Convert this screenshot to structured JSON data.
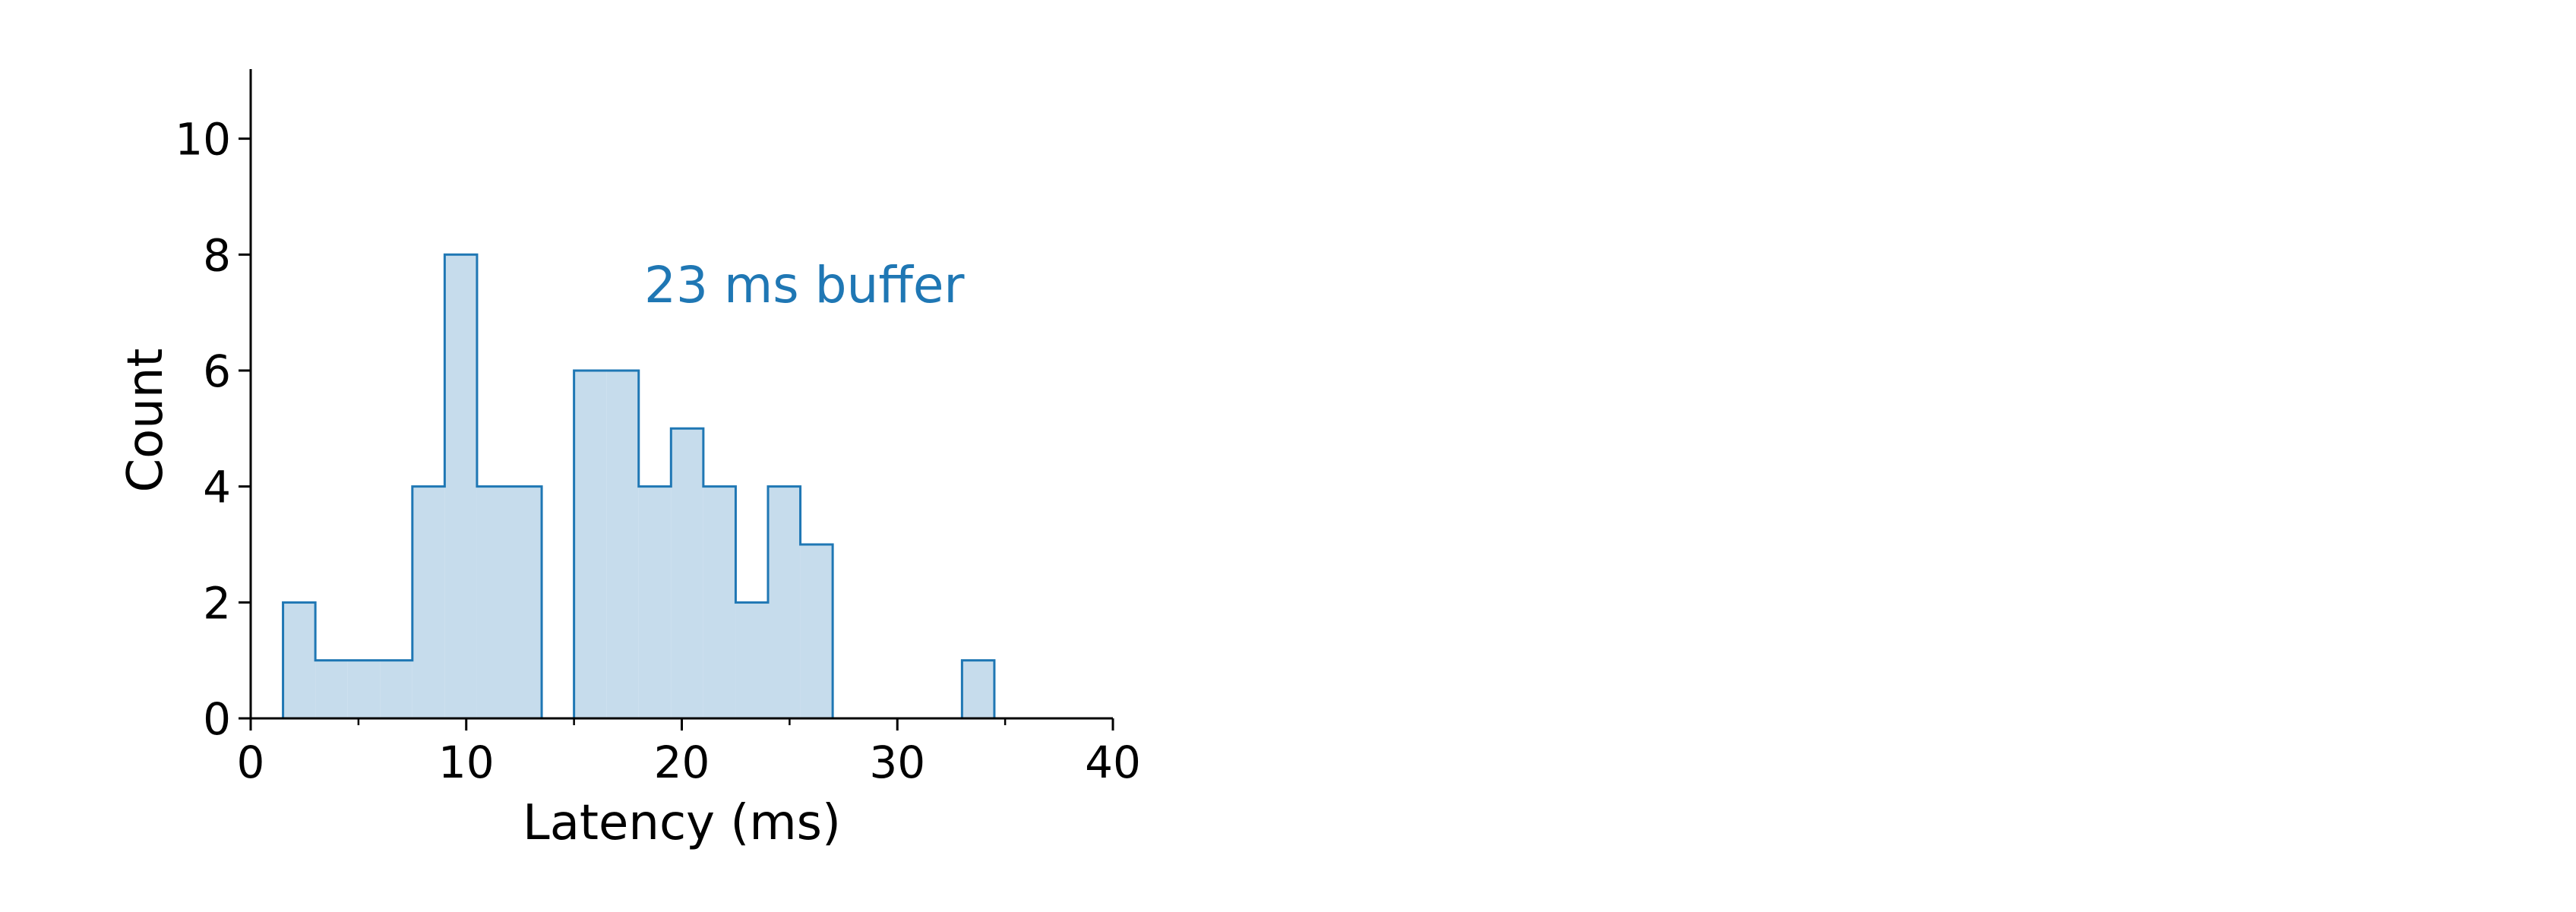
{
  "chart_data": {
    "type": "bar",
    "subtype": "histogram-step-filled",
    "title": "",
    "xlabel": "Latency (ms)",
    "ylabel": "Count",
    "xlim": [
      0,
      40
    ],
    "ylim": [
      0,
      11.2
    ],
    "x_ticks": [
      0,
      10,
      20,
      30,
      40
    ],
    "x_tick_labels": [
      "0",
      "10",
      "20",
      "30",
      "40"
    ],
    "x_minor_ticks": [
      5,
      15,
      25,
      35
    ],
    "y_ticks": [
      0,
      2,
      4,
      6,
      8,
      10
    ],
    "y_tick_labels": [
      "0",
      "2",
      "4",
      "6",
      "8",
      "10"
    ],
    "grid": false,
    "legend": "none",
    "spines": "left-bottom",
    "annotation": "23 ms buffer",
    "series": [
      {
        "bin_edges": [
          1.5,
          3.0,
          4.5,
          6.0,
          7.5,
          9.0,
          10.5,
          12.0,
          13.5,
          15.0,
          16.5,
          18.0,
          19.5,
          21.0,
          22.5,
          24.0,
          25.5,
          27.0,
          28.5,
          30.0,
          31.5,
          33.0,
          34.5
        ],
        "counts": [
          2,
          1,
          1,
          1,
          4,
          8,
          4,
          4,
          0,
          6,
          6,
          4,
          5,
          4,
          2,
          4,
          3,
          0,
          0,
          0,
          0,
          1
        ]
      }
    ],
    "colors": {
      "fill": "#c6dcec",
      "edge": "#1f77b4",
      "annotation": "#1f77b4",
      "axis": "#000000"
    }
  }
}
